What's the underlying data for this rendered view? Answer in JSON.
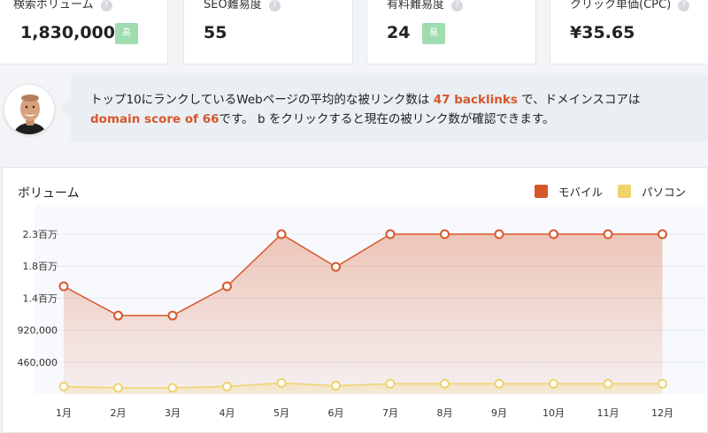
{
  "metrics": [
    {
      "label": "検索ボリューム",
      "value": "1,830,000",
      "badge": "高"
    },
    {
      "label": "SEO難易度",
      "value": "55"
    },
    {
      "label": "有料難易度",
      "value": "24",
      "badge": "易"
    },
    {
      "label": "クリック単価(CPC)",
      "value": "¥35.65"
    }
  ],
  "help_glyph": "?",
  "tip": {
    "text_1": "トップ10にランクしているWebページの平均的な被リンク数は",
    "highlight_1": "47 backlinks",
    "text_2": " で、ドメインスコアは",
    "highlight_2": "domain score of 66",
    "text_3": "です。 b をクリックすると現在の被リンク数が確認できます。"
  },
  "panel": {
    "title": "ボリューム",
    "legend": [
      {
        "name": "モバイル",
        "color": "#d8572a"
      },
      {
        "name": "パソコン",
        "color": "#f0d36e"
      }
    ]
  },
  "chart_data": {
    "type": "area",
    "x": [
      "1月",
      "2月",
      "3月",
      "4月",
      "5月",
      "6月",
      "7月",
      "8月",
      "9月",
      "10月",
      "11月",
      "12月"
    ],
    "y_ticks": [
      {
        "label": "460,000",
        "value": 460000
      },
      {
        "label": "920,000",
        "value": 920000
      },
      {
        "label": "1.4百万",
        "value": 1380000
      },
      {
        "label": "1.8百万",
        "value": 1840000
      },
      {
        "label": "2.3百万",
        "value": 2300000
      }
    ],
    "ylim": [
      0,
      2300000
    ],
    "grid": true,
    "legend_position": "top-right",
    "series": [
      {
        "name": "モバイル",
        "color": "#d8572a",
        "values": [
          1550000,
          1130000,
          1130000,
          1550000,
          2300000,
          1830000,
          2300000,
          2300000,
          2300000,
          2300000,
          2300000,
          2300000
        ]
      },
      {
        "name": "パソコン",
        "color": "#f0d36e",
        "values": [
          110000,
          90000,
          90000,
          110000,
          160000,
          120000,
          150000,
          150000,
          150000,
          150000,
          150000,
          150000
        ]
      }
    ]
  }
}
